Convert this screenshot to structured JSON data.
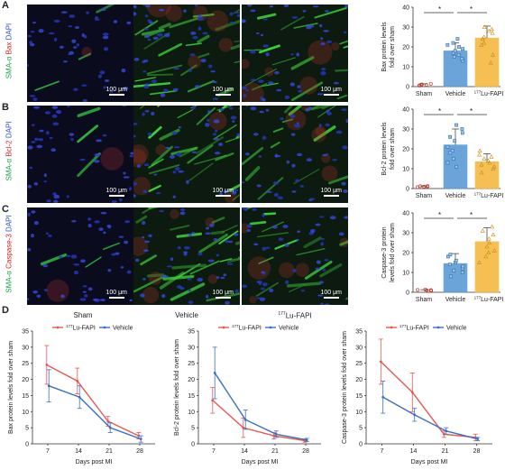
{
  "colors": {
    "sham": "#e05555",
    "vehicle": "#5b9bd5",
    "lu": "#f5b942",
    "lu_line": "#e8584f",
    "veh_line": "#3b6fc4"
  },
  "panels": {
    "A": "A",
    "B": "B",
    "C": "C",
    "D": "D"
  },
  "stains": {
    "A": {
      "sma": "SMA-α",
      "marker": "Bax",
      "dapi": "DAPI"
    },
    "B": {
      "sma": "SMA-α",
      "marker": "Bcl-2",
      "dapi": "DAPI"
    },
    "C": {
      "sma": "SMA-α",
      "marker": "Caspase-3",
      "dapi": "DAPI"
    }
  },
  "scale_label": "100 μm",
  "columns": {
    "sham": "Sham",
    "vehicle": "Vehicle",
    "lu_sup": "177",
    "lu_rest": "Lu-FAPI"
  },
  "significance": "*",
  "chart_data": [
    {
      "type": "bar",
      "panel": "A",
      "categories": [
        "Sham",
        "Vehicle",
        "177Lu-FAPI"
      ],
      "values": [
        1,
        18,
        24.5
      ],
      "errors": [
        0.4,
        4,
        6
      ],
      "ylabel_lines": [
        "Bax protein levels",
        "fold over sham"
      ],
      "ylim": [
        0,
        40
      ],
      "yticks": [
        "0",
        "10",
        "20",
        "30",
        "40"
      ],
      "points": [
        [
          1,
          0.6,
          1.4,
          1.1,
          0.9,
          0.5
        ],
        [
          13,
          15,
          17,
          18,
          19,
          20,
          22,
          24,
          16,
          21,
          14
        ],
        [
          12,
          16,
          21,
          24,
          25,
          27,
          28,
          29,
          30,
          22
        ]
      ]
    },
    {
      "type": "bar",
      "panel": "B",
      "categories": [
        "Sham",
        "Vehicle",
        "177Lu-FAPI"
      ],
      "values": [
        1,
        22,
        13.5
      ],
      "errors": [
        0.3,
        8,
        4
      ],
      "ylabel_lines": [
        "Bcl-2 protein levels",
        "fold over sham"
      ],
      "ylim": [
        0,
        40
      ],
      "yticks": [
        "0",
        "10",
        "20",
        "30",
        "40"
      ],
      "points": [
        [
          1,
          0.7,
          1.3,
          1,
          0.8,
          1.2
        ],
        [
          11,
          13,
          15,
          19,
          21,
          24,
          26,
          28,
          30,
          32,
          18
        ],
        [
          8,
          10,
          12,
          13,
          14,
          15,
          16,
          17,
          19,
          11
        ]
      ]
    },
    {
      "type": "bar",
      "panel": "C",
      "categories": [
        "Sham",
        "Vehicle",
        "177Lu-FAPI"
      ],
      "values": [
        1,
        14.5,
        25.5
      ],
      "errors": [
        0.3,
        5,
        7
      ],
      "ylabel_lines": [
        "Caspase-3 protein",
        "levels fold over sham"
      ],
      "ylim": [
        0,
        40
      ],
      "yticks": [
        "0",
        "10",
        "20",
        "30",
        "40"
      ],
      "points": [
        [
          1,
          0.6,
          1.4,
          1.1,
          0.8,
          1.2
        ],
        [
          8,
          10,
          12,
          13,
          14,
          15,
          16,
          18,
          19,
          11
        ],
        [
          15,
          18,
          21,
          23,
          25,
          27,
          29,
          31,
          33,
          20
        ]
      ]
    },
    {
      "type": "line",
      "panel": "D1",
      "x": [
        7,
        14,
        21,
        28
      ],
      "xlabel": "Days post MI",
      "ylabel": "Bax protein levels fold over sham",
      "ylim": [
        0,
        35
      ],
      "yticks": [
        "0",
        "5",
        "10",
        "15",
        "20",
        "25",
        "30",
        "35"
      ],
      "series": [
        {
          "name_sup": "177",
          "name": "Lu-FAPI",
          "values": [
            24.5,
            19.5,
            7,
            2.5
          ],
          "errors": [
            6,
            4,
            1.5,
            1
          ]
        },
        {
          "name": "Vehicle",
          "values": [
            18,
            14.5,
            5,
            1.5
          ],
          "errors": [
            5,
            3.5,
            1.5,
            1
          ]
        }
      ]
    },
    {
      "type": "line",
      "panel": "D2",
      "x": [
        7,
        14,
        21,
        28
      ],
      "xlabel": "Days post MI",
      "ylabel": "Bcl-2 protein levels fold over sham",
      "ylim": [
        0,
        35
      ],
      "yticks": [
        "0",
        "5",
        "10",
        "15",
        "20",
        "25",
        "30",
        "35"
      ],
      "series": [
        {
          "name_sup": "177",
          "name": "Lu-FAPI",
          "values": [
            13.5,
            5,
            2.5,
            1
          ],
          "errors": [
            4,
            3,
            1,
            0.5
          ]
        },
        {
          "name": "Vehicle",
          "values": [
            22,
            7.5,
            3,
            1.2
          ],
          "errors": [
            8,
            3,
            1,
            0.5
          ]
        }
      ]
    },
    {
      "type": "line",
      "panel": "D3",
      "x": [
        7,
        14,
        21,
        28
      ],
      "xlabel": "Days post MI",
      "ylabel": "Caspase-3 protein levels fold over sham",
      "ylim": [
        0,
        35
      ],
      "yticks": [
        "0",
        "5",
        "10",
        "15",
        "20",
        "25",
        "30",
        "35"
      ],
      "series": [
        {
          "name_sup": "177",
          "name": "Lu-FAPI",
          "values": [
            25.5,
            16,
            3,
            2
          ],
          "errors": [
            7,
            6,
            1,
            1
          ]
        },
        {
          "name": "Vehicle",
          "values": [
            14.5,
            9,
            4,
            1.5
          ],
          "errors": [
            5,
            2,
            1,
            0.5
          ]
        }
      ]
    }
  ]
}
